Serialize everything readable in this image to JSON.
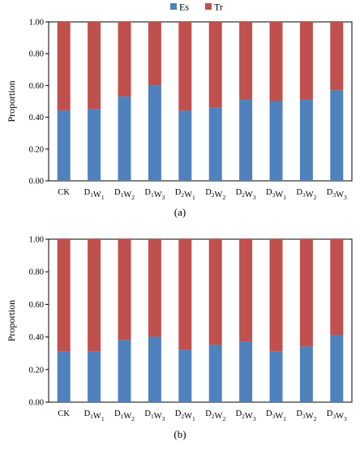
{
  "colors": {
    "Es": "#4F81BD",
    "Tr": "#C0504D"
  },
  "legend": {
    "items": [
      "Es",
      "Tr"
    ],
    "placement": "top-center"
  },
  "chart_data": [
    {
      "type": "bar",
      "stacked": true,
      "caption": "(a)",
      "ylabel": "Proportion",
      "ylim": [
        0,
        1
      ],
      "yticks": [
        "0.00",
        "0.20",
        "0.40",
        "0.60",
        "0.80",
        "1.00"
      ],
      "grid": false,
      "categories": [
        {
          "main": "CK",
          "parts": []
        },
        {
          "main": "",
          "parts": [
            [
              "D",
              "1"
            ],
            [
              "W",
              "1"
            ]
          ]
        },
        {
          "main": "",
          "parts": [
            [
              "D",
              "1"
            ],
            [
              "W",
              "2"
            ]
          ]
        },
        {
          "main": "",
          "parts": [
            [
              "D",
              "1"
            ],
            [
              "W",
              "3"
            ]
          ]
        },
        {
          "main": "",
          "parts": [
            [
              "D",
              "2"
            ],
            [
              "W",
              "1"
            ]
          ]
        },
        {
          "main": "",
          "parts": [
            [
              "D",
              "2"
            ],
            [
              "W",
              "2"
            ]
          ]
        },
        {
          "main": "",
          "parts": [
            [
              "D",
              "2"
            ],
            [
              "W",
              "3"
            ]
          ]
        },
        {
          "main": "",
          "parts": [
            [
              "D",
              "3"
            ],
            [
              "W",
              "1"
            ]
          ]
        },
        {
          "main": "",
          "parts": [
            [
              "D",
              "3"
            ],
            [
              "W",
              "2"
            ]
          ]
        },
        {
          "main": "",
          "parts": [
            [
              "D",
              "3"
            ],
            [
              "W",
              "3"
            ]
          ]
        }
      ],
      "series": [
        {
          "name": "Es",
          "values": [
            0.44,
            0.45,
            0.53,
            0.6,
            0.44,
            0.46,
            0.51,
            0.5,
            0.51,
            0.57
          ]
        },
        {
          "name": "Tr",
          "values": [
            0.56,
            0.55,
            0.47,
            0.4,
            0.56,
            0.54,
            0.49,
            0.5,
            0.49,
            0.43
          ]
        }
      ]
    },
    {
      "type": "bar",
      "stacked": true,
      "caption": "(b)",
      "ylabel": "Proportion",
      "ylim": [
        0,
        1
      ],
      "yticks": [
        "0.00",
        "0.20",
        "0.40",
        "0.60",
        "0.80",
        "1.00"
      ],
      "grid": false,
      "categories": [
        {
          "main": "CK",
          "parts": []
        },
        {
          "main": "",
          "parts": [
            [
              "D",
              "1"
            ],
            [
              "W",
              "1"
            ]
          ]
        },
        {
          "main": "",
          "parts": [
            [
              "D",
              "1"
            ],
            [
              "W",
              "2"
            ]
          ]
        },
        {
          "main": "",
          "parts": [
            [
              "D",
              "1"
            ],
            [
              "W",
              "3"
            ]
          ]
        },
        {
          "main": "",
          "parts": [
            [
              "D",
              "2"
            ],
            [
              "W",
              "1"
            ]
          ]
        },
        {
          "main": "",
          "parts": [
            [
              "D",
              "2"
            ],
            [
              "W",
              "2"
            ]
          ]
        },
        {
          "main": "",
          "parts": [
            [
              "D",
              "2"
            ],
            [
              "W",
              "3"
            ]
          ]
        },
        {
          "main": "",
          "parts": [
            [
              "D",
              "3"
            ],
            [
              "W",
              "1"
            ]
          ]
        },
        {
          "main": "",
          "parts": [
            [
              "D",
              "3"
            ],
            [
              "W",
              "2"
            ]
          ]
        },
        {
          "main": "",
          "parts": [
            [
              "D",
              "3"
            ],
            [
              "W",
              "3"
            ]
          ]
        }
      ],
      "series": [
        {
          "name": "Es",
          "values": [
            0.31,
            0.31,
            0.38,
            0.4,
            0.32,
            0.35,
            0.37,
            0.31,
            0.34,
            0.41
          ]
        },
        {
          "name": "Tr",
          "values": [
            0.69,
            0.69,
            0.62,
            0.6,
            0.68,
            0.65,
            0.63,
            0.69,
            0.66,
            0.59
          ]
        }
      ]
    }
  ]
}
